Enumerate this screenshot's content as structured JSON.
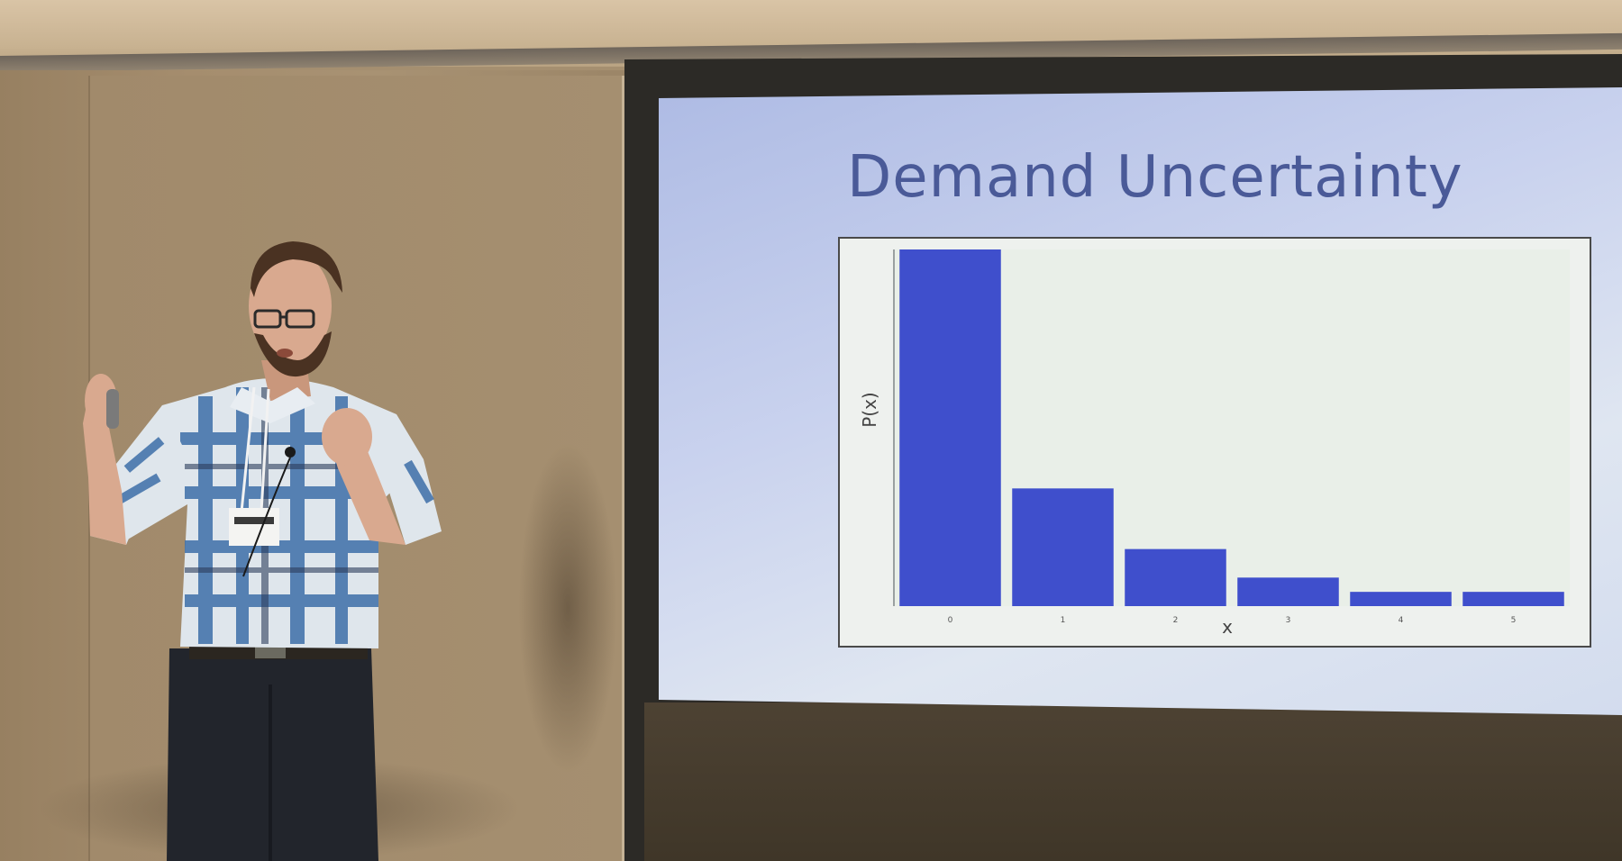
{
  "slide": {
    "title": "Demand Uncertainty"
  },
  "chart_data": {
    "type": "bar",
    "title": "Demand Uncertainty",
    "xlabel": "x",
    "ylabel": "P(x)",
    "categories": [
      "0",
      "1",
      "2",
      "3",
      "4",
      "5"
    ],
    "values": [
      1.0,
      0.33,
      0.16,
      0.08,
      0.04,
      0.04
    ],
    "ylim": [
      0,
      1.0
    ],
    "grid": false,
    "colors": {
      "bar": "#3f4fcc",
      "plot_bg": "#e9efe8"
    }
  },
  "badge": {
    "text": ""
  }
}
